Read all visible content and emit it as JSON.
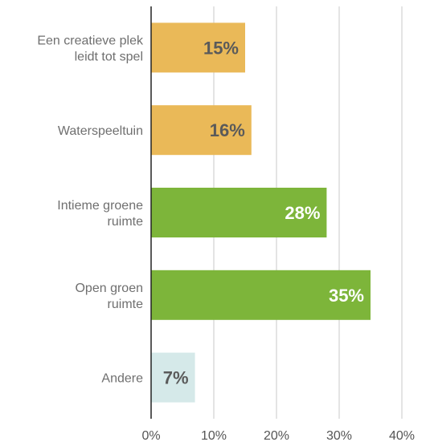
{
  "chart_data": {
    "type": "bar",
    "orientation": "horizontal",
    "categories": [
      [
        "Een creatieve plek",
        "leidt tot spel"
      ],
      [
        "Waterspeeltuin"
      ],
      [
        "Intieme groene",
        "ruimte"
      ],
      [
        "Open groen",
        "ruimte"
      ],
      [
        "Andere"
      ]
    ],
    "values": [
      15,
      16,
      28,
      35,
      7
    ],
    "data_labels": [
      "15%",
      "16%",
      "28%",
      "35%",
      "7%"
    ],
    "bar_colors": [
      "#eab958",
      "#eab958",
      "#7db53a",
      "#7db53a",
      "#d5e9e9"
    ],
    "label_colors": [
      "#5a5a5a",
      "#5a5a5a",
      "#ffffff",
      "#ffffff",
      "#5a5a5a"
    ],
    "xlim": [
      0,
      40
    ],
    "xticks": [
      0,
      10,
      20,
      30,
      40
    ],
    "xtick_labels": [
      "0%",
      "10%",
      "20%",
      "30%",
      "40%"
    ],
    "grid": "vertical",
    "title": "",
    "xlabel": "",
    "ylabel": ""
  }
}
